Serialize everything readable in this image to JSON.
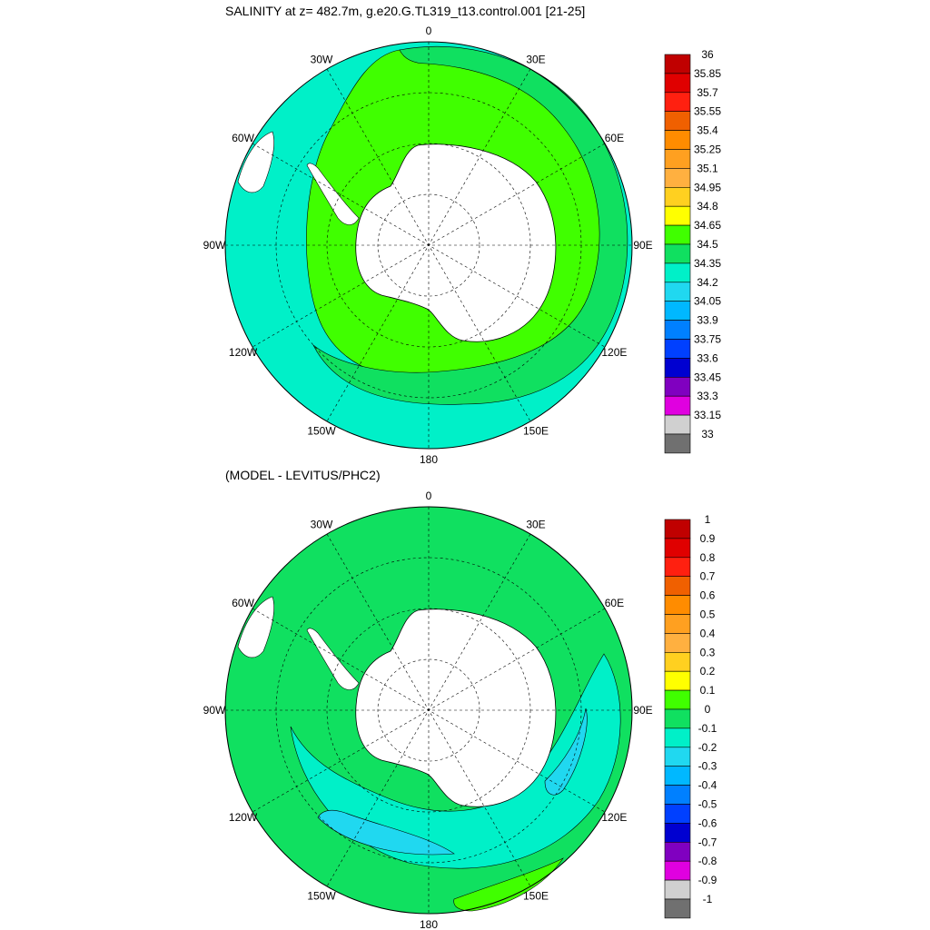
{
  "panels": [
    {
      "title": "SALINITY at z= 482.7m, g.e20.G.TL319_t13.control.001 [21-25]",
      "longitude_labels": [
        "0",
        "30E",
        "60E",
        "90E",
        "120E",
        "150E",
        "180",
        "150W",
        "120W",
        "90W",
        "60W",
        "30W"
      ],
      "colorbar": {
        "levels": [
          "36",
          "35.85",
          "35.7",
          "35.55",
          "35.4",
          "35.25",
          "35.1",
          "34.95",
          "34.8",
          "34.65",
          "34.5",
          "34.35",
          "34.2",
          "34.05",
          "33.9",
          "33.75",
          "33.6",
          "33.45",
          "33.3",
          "33.15",
          "33"
        ],
        "colors": [
          "#c00000",
          "#e00000",
          "#ff2010",
          "#f06000",
          "#ff8c00",
          "#ffa020",
          "#ffb040",
          "#ffd020",
          "#ffff00",
          "#40ff00",
          "#10e060",
          "#00f0c8",
          "#20d8f0",
          "#00b8ff",
          "#0080ff",
          "#0040ff",
          "#0000d0",
          "#8000c0",
          "#e000e0",
          "#d0d0d0",
          "#707070"
        ]
      }
    },
    {
      "title": "(MODEL - LEVITUS/PHC2)",
      "longitude_labels": [
        "0",
        "30E",
        "60E",
        "90E",
        "120E",
        "150E",
        "180",
        "150W",
        "120W",
        "90W",
        "60W",
        "30W"
      ],
      "colorbar": {
        "levels": [
          "1",
          "0.9",
          "0.8",
          "0.7",
          "0.6",
          "0.5",
          "0.4",
          "0.3",
          "0.2",
          "0.1",
          "0",
          "-0.1",
          "-0.2",
          "-0.3",
          "-0.4",
          "-0.5",
          "-0.6",
          "-0.7",
          "-0.8",
          "-0.9",
          "-1"
        ],
        "colors": [
          "#c00000",
          "#e00000",
          "#ff2010",
          "#f06000",
          "#ff8c00",
          "#ffa020",
          "#ffb040",
          "#ffd020",
          "#ffff00",
          "#40ff00",
          "#10e060",
          "#00f0c8",
          "#20d8f0",
          "#00b8ff",
          "#0080ff",
          "#0040ff",
          "#0000d0",
          "#8000c0",
          "#e000e0",
          "#d0d0d0",
          "#707070"
        ]
      }
    }
  ]
}
